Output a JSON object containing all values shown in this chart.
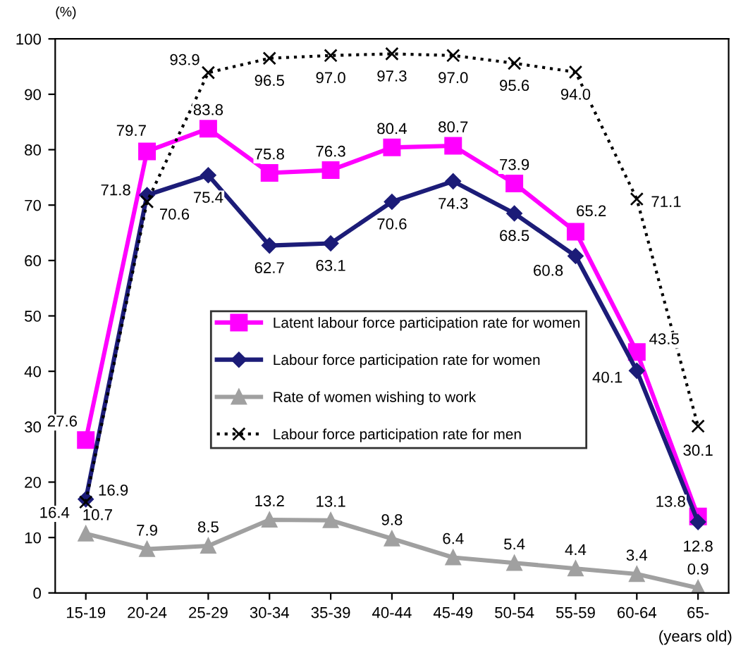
{
  "chart_data": {
    "type": "line",
    "ylabel": "(%)",
    "xlabel": "(years old)",
    "categories": [
      "15-19",
      "20-24",
      "25-29",
      "30-34",
      "35-39",
      "40-44",
      "45-49",
      "50-54",
      "55-59",
      "60-64",
      "65-"
    ],
    "series": [
      {
        "name": "Latent labour force participation rate for women",
        "color": "#ff00ff",
        "marker": "square",
        "line_style": "solid",
        "values": [
          27.6,
          79.7,
          83.8,
          75.8,
          76.3,
          80.4,
          80.7,
          73.9,
          65.2,
          43.5,
          13.8
        ],
        "value_labels": [
          "27.6",
          "79.7",
          "83.8",
          "75.8",
          "76.3",
          "80.4",
          "80.7",
          "73.9",
          "65.2",
          "43.5",
          "13.8"
        ]
      },
      {
        "name": "Labour force participation rate for women",
        "color": "#1c1c78",
        "marker": "diamond",
        "line_style": "solid",
        "values": [
          16.9,
          71.8,
          75.4,
          62.7,
          63.1,
          70.6,
          74.3,
          68.5,
          60.8,
          40.1,
          12.8
        ],
        "value_labels": [
          "16.9",
          "71.8",
          "75.4",
          "62.7",
          "63.1",
          "70.6",
          "74.3",
          "68.5",
          "60.8",
          "40.1",
          "12.8"
        ]
      },
      {
        "name": "Rate of women wishing to work",
        "color": "#a0a0a0",
        "marker": "triangle",
        "line_style": "solid",
        "values": [
          10.7,
          7.9,
          8.5,
          13.2,
          13.1,
          9.8,
          6.4,
          5.4,
          4.4,
          3.4,
          0.9
        ],
        "value_labels": [
          "10.7",
          "7.9",
          "8.5",
          "13.2",
          "13.1",
          "9.8",
          "6.4",
          "5.4",
          "4.4",
          "3.4",
          "0.9"
        ]
      },
      {
        "name": "Labour force participation rate for men",
        "color": "#000000",
        "marker": "cross",
        "line_style": "dotted",
        "values": [
          16.4,
          70.6,
          93.9,
          96.5,
          97.0,
          97.3,
          97.0,
          95.6,
          94.0,
          71.1,
          30.1
        ],
        "value_labels": [
          "16.4",
          "70.6",
          "93.9",
          "96.5",
          "97.0",
          "97.3",
          "97.0",
          "95.6",
          "94.0",
          "71.1",
          "30.1"
        ]
      }
    ],
    "ylim": [
      0,
      100
    ],
    "yticks": [
      0,
      10,
      20,
      30,
      40,
      50,
      60,
      70,
      80,
      90,
      100
    ],
    "grid": false,
    "legend": "center"
  }
}
